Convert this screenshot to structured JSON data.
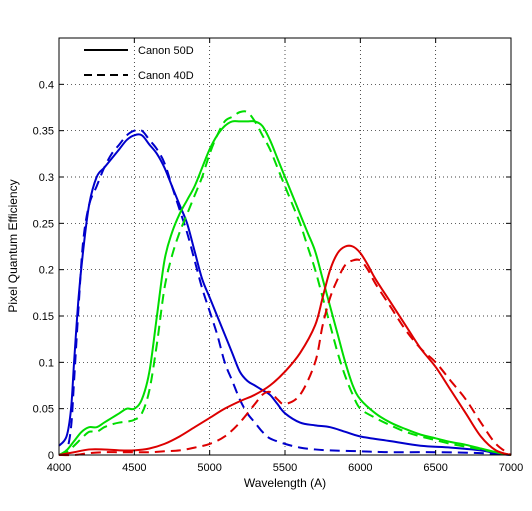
{
  "chart_data": {
    "type": "line",
    "xlabel": "Wavelength (A)",
    "ylabel": "Pixel Quantum Efficiency",
    "xlim": [
      4000,
      7000
    ],
    "ylim": [
      0,
      0.45
    ],
    "xticks": [
      4000,
      4500,
      5000,
      5500,
      6000,
      6500,
      7000
    ],
    "xtick_labels": [
      "4000",
      "4500",
      "5000",
      "5500",
      "6000",
      "6500",
      "7000"
    ],
    "yticks": [
      0,
      0.05,
      0.1,
      0.15,
      0.2,
      0.25,
      0.3,
      0.35,
      0.4
    ],
    "ytick_labels": [
      "0",
      "0.05",
      "0.1",
      "0.15",
      "0.2",
      "0.25",
      "0.3",
      "0.35",
      "0.4"
    ],
    "grid": true,
    "legend_position": "top-left",
    "legend": [
      {
        "label": "Canon 50D",
        "style": "solid"
      },
      {
        "label": "Canon 40D",
        "style": "dashed"
      }
    ],
    "series": [
      {
        "camera": "Canon 50D",
        "channel": "blue",
        "color": "#0000cc",
        "style": "solid",
        "x": [
          4000,
          4050,
          4080,
          4100,
          4130,
          4160,
          4200,
          4250,
          4300,
          4350,
          4400,
          4450,
          4500,
          4550,
          4600,
          4650,
          4700,
          4750,
          4800,
          4850,
          4900,
          4950,
          5000,
          5050,
          5100,
          5150,
          5200,
          5250,
          5300,
          5350,
          5400,
          5450,
          5500,
          5600,
          5700,
          5800,
          5900,
          6000,
          6200,
          6400,
          6600,
          6800,
          6900,
          7000
        ],
        "y": [
          0.01,
          0.02,
          0.05,
          0.1,
          0.17,
          0.22,
          0.27,
          0.3,
          0.31,
          0.32,
          0.33,
          0.34,
          0.345,
          0.345,
          0.335,
          0.325,
          0.31,
          0.29,
          0.27,
          0.25,
          0.22,
          0.19,
          0.17,
          0.15,
          0.13,
          0.11,
          0.09,
          0.08,
          0.075,
          0.07,
          0.065,
          0.055,
          0.045,
          0.035,
          0.032,
          0.03,
          0.025,
          0.02,
          0.015,
          0.01,
          0.008,
          0.005,
          0.002,
          0.0
        ]
      },
      {
        "camera": "Canon 40D",
        "channel": "blue",
        "color": "#0000cc",
        "style": "dashed",
        "x": [
          4000,
          4050,
          4080,
          4100,
          4130,
          4160,
          4200,
          4250,
          4300,
          4350,
          4400,
          4450,
          4500,
          4550,
          4600,
          4650,
          4700,
          4750,
          4800,
          4850,
          4900,
          4950,
          5000,
          5050,
          5100,
          5150,
          5200,
          5250,
          5300,
          5350,
          5400,
          5500,
          5600,
          5700,
          5800,
          6000,
          6200,
          6500,
          6800,
          7000
        ],
        "y": [
          0.0,
          0.005,
          0.03,
          0.08,
          0.16,
          0.23,
          0.27,
          0.29,
          0.31,
          0.325,
          0.335,
          0.345,
          0.35,
          0.35,
          0.34,
          0.33,
          0.315,
          0.29,
          0.265,
          0.24,
          0.21,
          0.18,
          0.155,
          0.13,
          0.1,
          0.08,
          0.06,
          0.045,
          0.035,
          0.025,
          0.018,
          0.012,
          0.008,
          0.006,
          0.005,
          0.004,
          0.003,
          0.003,
          0.002,
          0.0
        ]
      },
      {
        "camera": "Canon 50D",
        "channel": "green",
        "color": "#00dd00",
        "style": "solid",
        "x": [
          4000,
          4050,
          4100,
          4150,
          4200,
          4250,
          4300,
          4350,
          4400,
          4450,
          4500,
          4550,
          4600,
          4650,
          4700,
          4750,
          4800,
          4850,
          4900,
          4950,
          5000,
          5050,
          5100,
          5150,
          5200,
          5250,
          5300,
          5350,
          5400,
          5450,
          5500,
          5550,
          5600,
          5650,
          5700,
          5750,
          5800,
          5850,
          5900,
          5950,
          6000,
          6100,
          6200,
          6300,
          6400,
          6500,
          6600,
          6700,
          6800,
          6900,
          7000
        ],
        "y": [
          0.0,
          0.005,
          0.015,
          0.025,
          0.03,
          0.03,
          0.035,
          0.04,
          0.045,
          0.05,
          0.05,
          0.06,
          0.09,
          0.15,
          0.21,
          0.24,
          0.26,
          0.275,
          0.29,
          0.31,
          0.33,
          0.345,
          0.355,
          0.36,
          0.36,
          0.36,
          0.36,
          0.355,
          0.34,
          0.32,
          0.3,
          0.28,
          0.26,
          0.24,
          0.22,
          0.19,
          0.16,
          0.13,
          0.1,
          0.075,
          0.06,
          0.045,
          0.035,
          0.028,
          0.022,
          0.018,
          0.014,
          0.011,
          0.007,
          0.003,
          0.0
        ]
      },
      {
        "camera": "Canon 40D",
        "channel": "green",
        "color": "#00dd00",
        "style": "dashed",
        "x": [
          4000,
          4050,
          4100,
          4150,
          4200,
          4250,
          4300,
          4350,
          4400,
          4450,
          4500,
          4550,
          4600,
          4650,
          4700,
          4750,
          4800,
          4850,
          4900,
          4950,
          5000,
          5050,
          5100,
          5150,
          5200,
          5250,
          5300,
          5350,
          5400,
          5450,
          5500,
          5550,
          5600,
          5650,
          5700,
          5750,
          5800,
          5850,
          5900,
          5950,
          6000,
          6100,
          6200,
          6300,
          6400,
          6500,
          6600,
          6700,
          6800,
          6900,
          7000
        ],
        "y": [
          0.0,
          0.003,
          0.01,
          0.018,
          0.025,
          0.025,
          0.03,
          0.033,
          0.035,
          0.036,
          0.038,
          0.045,
          0.07,
          0.12,
          0.18,
          0.215,
          0.24,
          0.26,
          0.28,
          0.3,
          0.325,
          0.345,
          0.36,
          0.365,
          0.37,
          0.37,
          0.36,
          0.345,
          0.33,
          0.31,
          0.29,
          0.27,
          0.25,
          0.225,
          0.2,
          0.17,
          0.14,
          0.11,
          0.085,
          0.065,
          0.05,
          0.04,
          0.032,
          0.025,
          0.02,
          0.016,
          0.012,
          0.009,
          0.006,
          0.003,
          0.0
        ]
      },
      {
        "camera": "Canon 50D",
        "channel": "red",
        "color": "#dd0000",
        "style": "solid",
        "x": [
          4000,
          4100,
          4200,
          4300,
          4400,
          4500,
          4600,
          4700,
          4800,
          4900,
          5000,
          5100,
          5200,
          5300,
          5400,
          5500,
          5600,
          5700,
          5750,
          5800,
          5850,
          5900,
          5950,
          6000,
          6050,
          6100,
          6200,
          6300,
          6400,
          6500,
          6600,
          6700,
          6800,
          6900,
          7000
        ],
        "y": [
          0.0,
          0.003,
          0.006,
          0.006,
          0.005,
          0.005,
          0.007,
          0.012,
          0.02,
          0.03,
          0.04,
          0.05,
          0.058,
          0.065,
          0.075,
          0.09,
          0.11,
          0.14,
          0.17,
          0.2,
          0.218,
          0.225,
          0.225,
          0.218,
          0.205,
          0.19,
          0.165,
          0.14,
          0.115,
          0.095,
          0.07,
          0.045,
          0.02,
          0.005,
          0.0
        ]
      },
      {
        "camera": "Canon 40D",
        "channel": "red",
        "color": "#dd0000",
        "style": "dashed",
        "x": [
          4000,
          4100,
          4200,
          4300,
          4400,
          4500,
          4600,
          4700,
          4800,
          4900,
          5000,
          5100,
          5200,
          5300,
          5350,
          5400,
          5450,
          5500,
          5600,
          5700,
          5750,
          5800,
          5850,
          5900,
          5950,
          6000,
          6050,
          6100,
          6200,
          6300,
          6400,
          6500,
          6600,
          6700,
          6800,
          6900,
          7000
        ],
        "y": [
          0.0,
          0.0,
          0.002,
          0.003,
          0.003,
          0.003,
          0.003,
          0.004,
          0.005,
          0.008,
          0.012,
          0.02,
          0.035,
          0.055,
          0.065,
          0.068,
          0.06,
          0.055,
          0.065,
          0.1,
          0.14,
          0.17,
          0.19,
          0.205,
          0.21,
          0.21,
          0.2,
          0.185,
          0.16,
          0.135,
          0.115,
          0.1,
          0.08,
          0.06,
          0.035,
          0.012,
          0.0
        ]
      }
    ]
  }
}
